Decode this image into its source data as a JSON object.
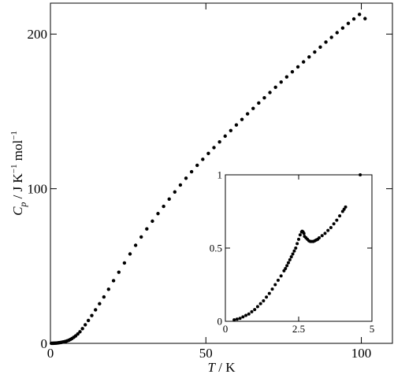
{
  "chart_data": [
    {
      "type": "scatter",
      "ylabel": {
        "symbol": "C",
        "subscript": "p",
        "unit_prefix": " / J K",
        "unit_exp1": "−1",
        "unit_mid": " mol",
        "unit_exp2": "−1"
      },
      "xlabel": {
        "symbol": "T",
        "unit": " / K"
      },
      "xlim": [
        0,
        110
      ],
      "ylim": [
        0,
        220
      ],
      "xticks": [
        0,
        50,
        100
      ],
      "xtick_labels": [
        "0",
        "50",
        "100"
      ],
      "yticks": [
        0,
        100,
        200
      ],
      "ytick_labels": [
        "0",
        "100",
        "200"
      ],
      "grid": false,
      "marker_color": "#000000",
      "series": [
        {
          "x": [
            0.3,
            0.6,
            0.9,
            1.2,
            1.5,
            1.8,
            2.1,
            2.4,
            2.7,
            3.0,
            3.3,
            3.6,
            3.9,
            4.2,
            4.6,
            5.0,
            5.4,
            5.9,
            6.4,
            6.9,
            7.5,
            8.1,
            8.8,
            9.5,
            10.3,
            11.2,
            12.2,
            13.3,
            14.5,
            15.8,
            17.2,
            18.7,
            20.3,
            22.0,
            23.8,
            25.6,
            27.4,
            29.2,
            31.0,
            32.8,
            34.6,
            36.4,
            38.2,
            40.0,
            41.8,
            43.6,
            45.4,
            47.2,
            49.0,
            50.8,
            52.6,
            54.4,
            56.2,
            58.0,
            59.8,
            61.6,
            63.4,
            65.2,
            67.0,
            68.8,
            70.6,
            72.4,
            74.2,
            76.0,
            77.8,
            79.6,
            81.4,
            83.2,
            85.0,
            86.8,
            88.6,
            90.4,
            92.2,
            94.0,
            95.8,
            97.6,
            99.4,
            101.2
          ],
          "y": [
            0.02,
            0.04,
            0.06,
            0.09,
            0.13,
            0.18,
            0.24,
            0.3,
            0.38,
            0.47,
            0.56,
            0.66,
            0.78,
            0.9,
            1.1,
            1.3,
            1.6,
            2.0,
            2.5,
            3.1,
            3.9,
            4.8,
            6.1,
            7.5,
            9.5,
            12.0,
            14.8,
            18.0,
            21.7,
            25.6,
            30.0,
            35.0,
            40.5,
            46.0,
            52.0,
            57.8,
            63.4,
            68.8,
            74.0,
            79.0,
            83.9,
            88.6,
            93.3,
            97.9,
            102.4,
            106.8,
            111.0,
            115.1,
            119.0,
            122.8,
            126.6,
            130.3,
            134.0,
            137.6,
            141.2,
            144.8,
            148.4,
            151.9,
            155.4,
            158.8,
            162.2,
            165.6,
            169.0,
            172.3,
            175.6,
            178.8,
            182.0,
            185.2,
            188.4,
            191.6,
            194.8,
            197.9,
            200.9,
            203.9,
            206.9,
            209.8,
            212.7,
            210.0
          ]
        }
      ]
    },
    {
      "type": "scatter",
      "title": "",
      "xlim": [
        0,
        5
      ],
      "ylim": [
        0,
        1
      ],
      "xticks": [
        0,
        2.5,
        5
      ],
      "xtick_labels": [
        "0",
        "2.5",
        "5"
      ],
      "yticks": [
        0,
        0.5,
        1
      ],
      "ytick_labels": [
        "0",
        "0.5",
        "1"
      ],
      "grid": false,
      "marker_color": "#000000",
      "series": [
        {
          "x": [
            0.3,
            0.4,
            0.5,
            0.6,
            0.7,
            0.8,
            0.9,
            1.0,
            1.1,
            1.2,
            1.3,
            1.4,
            1.5,
            1.6,
            1.7,
            1.8,
            1.9,
            2.0,
            2.05,
            2.1,
            2.15,
            2.2,
            2.25,
            2.3,
            2.35,
            2.4,
            2.45,
            2.5,
            2.55,
            2.6,
            2.62,
            2.65,
            2.68,
            2.7,
            2.75,
            2.8,
            2.85,
            2.9,
            2.95,
            3.0,
            3.05,
            3.1,
            3.15,
            3.2,
            3.3,
            3.4,
            3.5,
            3.6,
            3.7,
            3.8,
            3.9,
            4.0,
            4.05,
            4.1,
            4.6
          ],
          "y": [
            0.01,
            0.015,
            0.02,
            0.03,
            0.04,
            0.05,
            0.065,
            0.08,
            0.1,
            0.12,
            0.14,
            0.165,
            0.19,
            0.22,
            0.25,
            0.28,
            0.31,
            0.345,
            0.36,
            0.38,
            0.4,
            0.42,
            0.44,
            0.46,
            0.48,
            0.5,
            0.53,
            0.56,
            0.59,
            0.61,
            0.615,
            0.61,
            0.6,
            0.58,
            0.57,
            0.56,
            0.55,
            0.545,
            0.545,
            0.545,
            0.55,
            0.555,
            0.56,
            0.57,
            0.585,
            0.6,
            0.62,
            0.64,
            0.665,
            0.69,
            0.72,
            0.75,
            0.765,
            0.78,
            1.0
          ]
        }
      ]
    }
  ]
}
